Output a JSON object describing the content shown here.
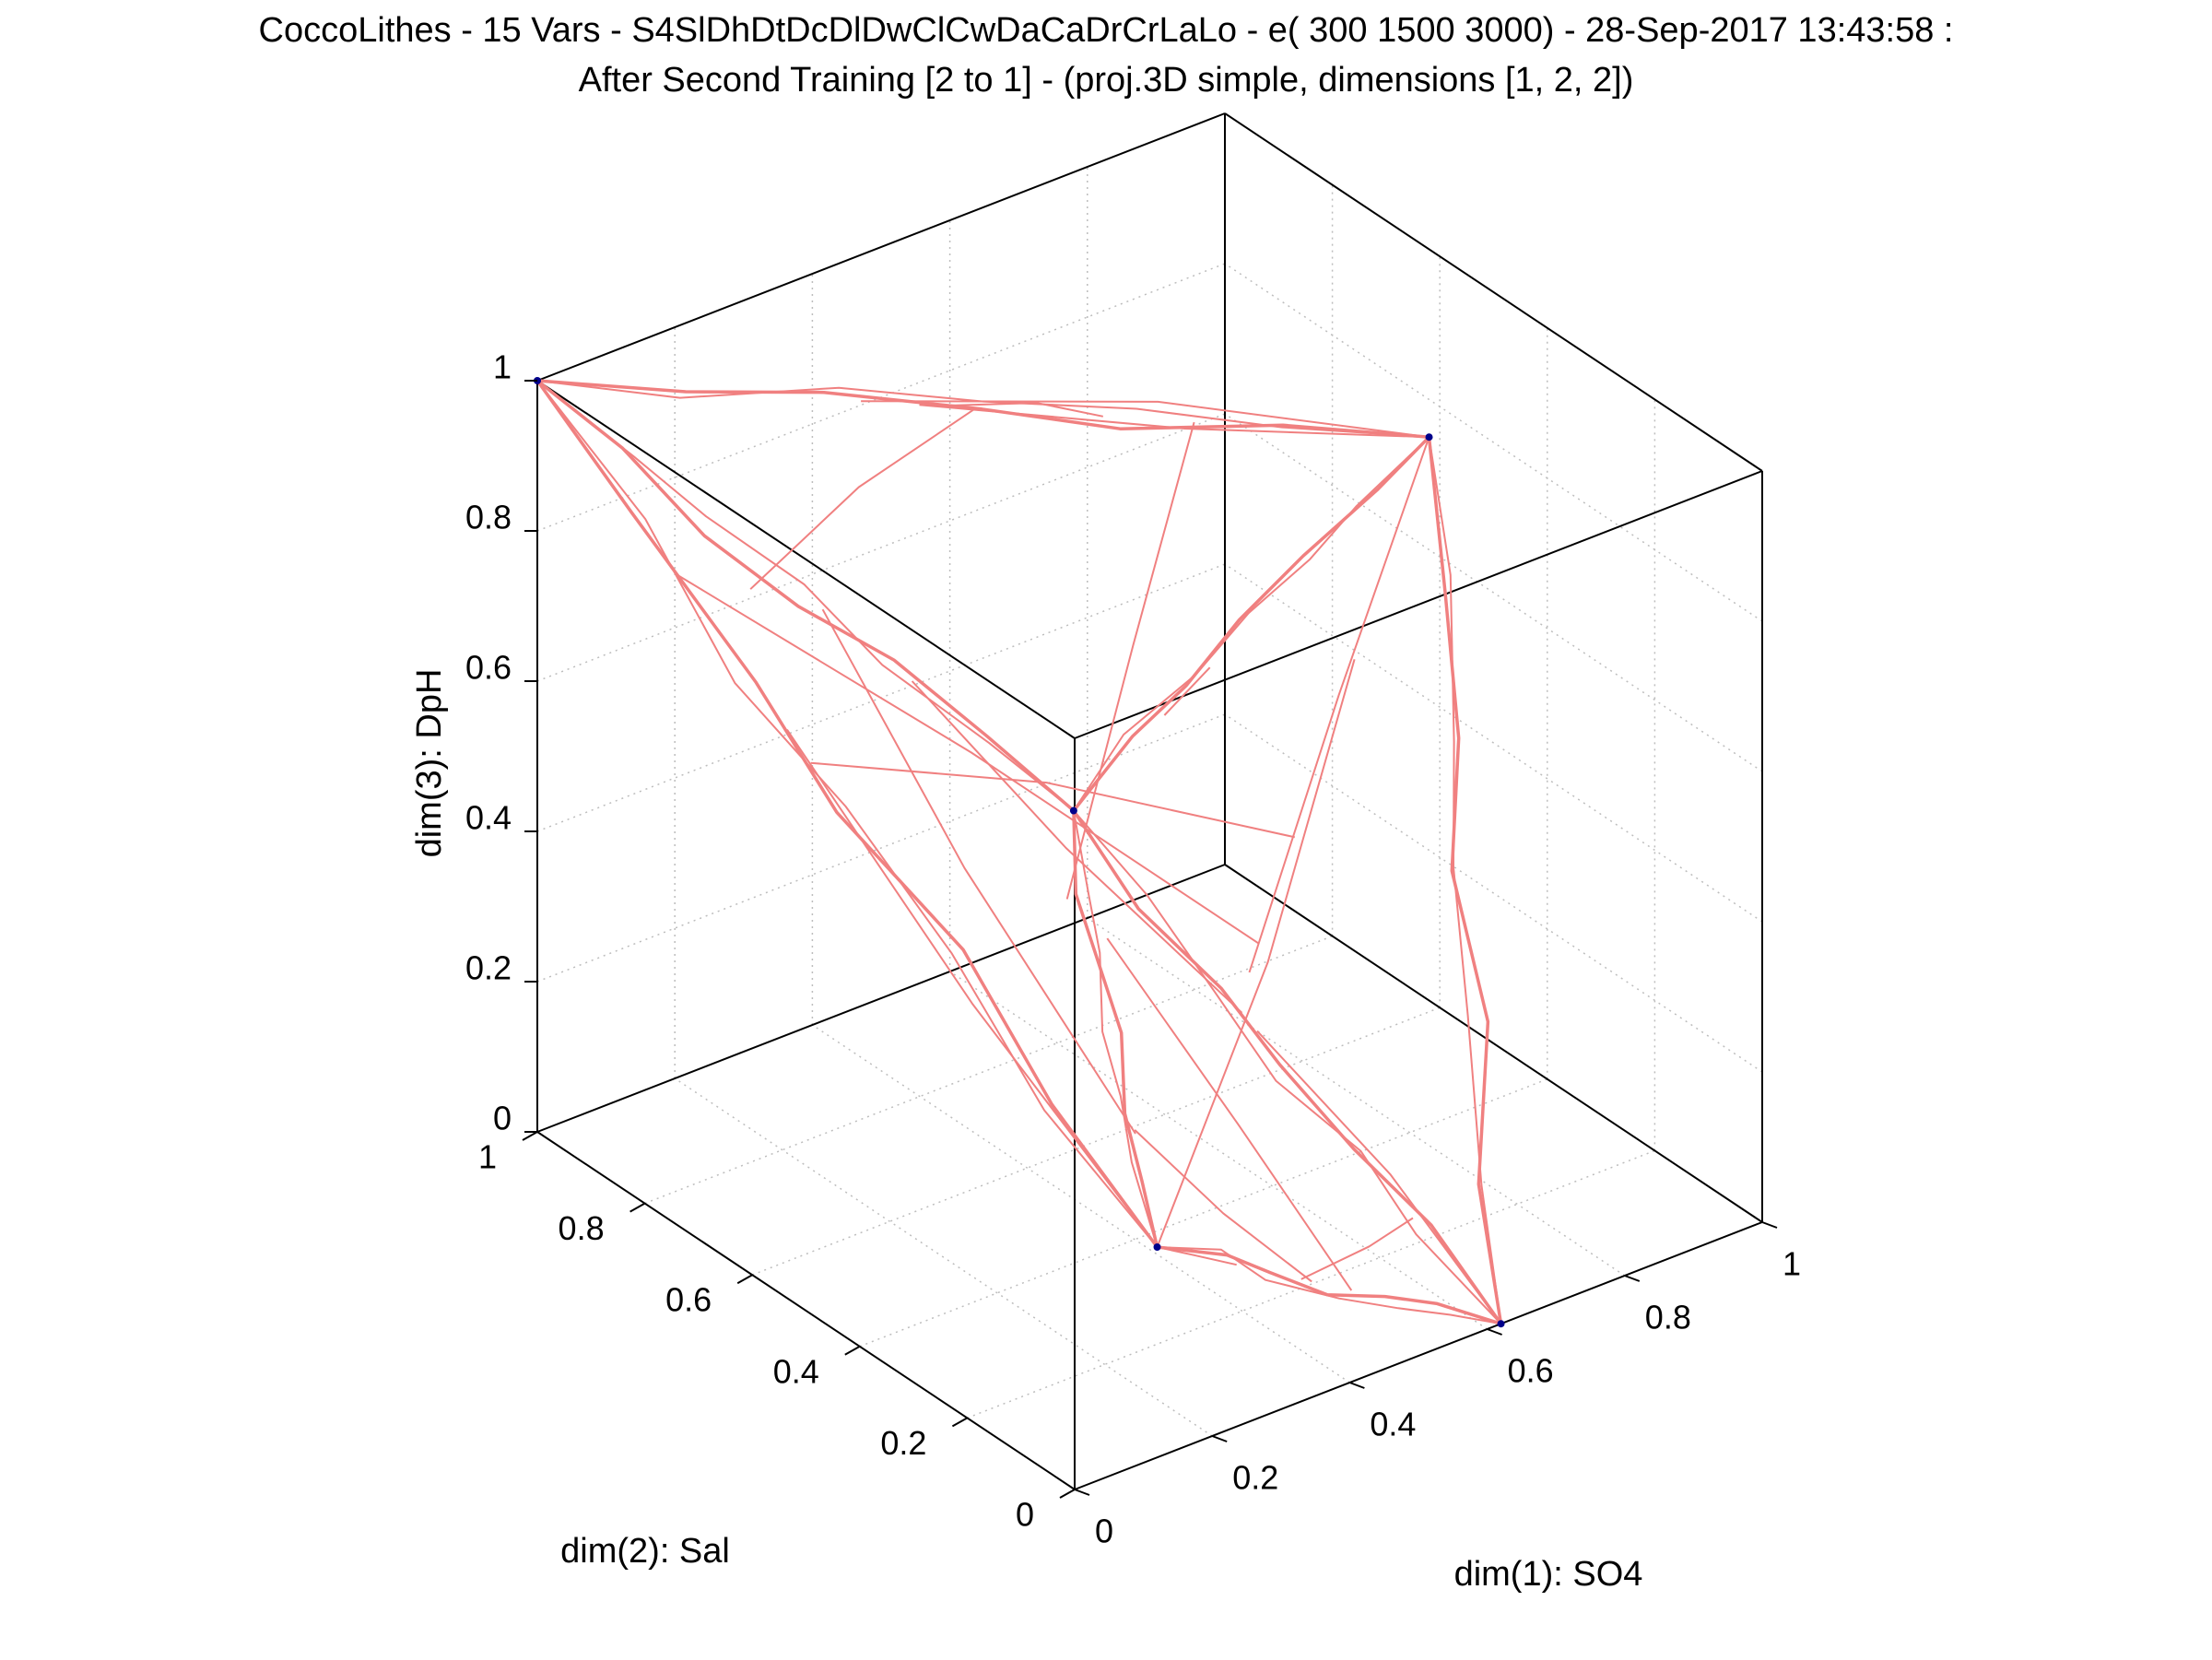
{
  "chart_data": {
    "type": "3d-mesh",
    "title": [
      "CoccoLithes - 15 Vars - S4SlDhDtDcDlDwClCwDaCaDrCrLaLo - e( 300 1500 3000) - 28-Sep-2017 13:43:58 :",
      "After Second Training [2 to 1] - (proj.3D simple, dimensions [1, 2, 2])"
    ],
    "axes": {
      "x": {
        "label": "dim(1): SO4",
        "range": [
          0,
          1
        ],
        "ticks": [
          "0",
          "0.2",
          "0.4",
          "0.6",
          "0.8",
          "1"
        ]
      },
      "y": {
        "label": "dim(2): Sal",
        "range": [
          0,
          1
        ],
        "ticks": [
          "0",
          "0.2",
          "0.4",
          "0.6",
          "0.8",
          "1"
        ]
      },
      "z": {
        "label": "dim(3): DpH",
        "range": [
          0,
          1
        ],
        "ticks": [
          "0",
          "0.2",
          "0.4",
          "0.6",
          "0.8",
          "1"
        ]
      }
    },
    "grid": true,
    "mesh_color": "#f08080",
    "corner_point_color": "#00008b",
    "corner_points": [
      {
        "name": "P1",
        "x": 0.0,
        "y": 1.0,
        "z": 1.0
      },
      {
        "name": "P2",
        "x": 1.0,
        "y": 0.62,
        "z": 0.75
      },
      {
        "name": "P3",
        "x": 0.12,
        "y": 0.0,
        "z": 0.28
      },
      {
        "name": "P4",
        "x": 0.78,
        "y": 1.0,
        "z": 0.15
      },
      {
        "name": "P5",
        "x": 0.62,
        "y": 0.0,
        "z": 0.0
      }
    ],
    "mesh_edges": [
      [
        "P1",
        "P2"
      ],
      [
        "P1",
        "P3"
      ],
      [
        "P1",
        "P4"
      ],
      [
        "P3",
        "P5"
      ],
      [
        "P5",
        "P4"
      ],
      [
        "P5",
        "P2"
      ],
      [
        "P4",
        "P2"
      ],
      [
        "P3",
        "P4"
      ]
    ]
  }
}
